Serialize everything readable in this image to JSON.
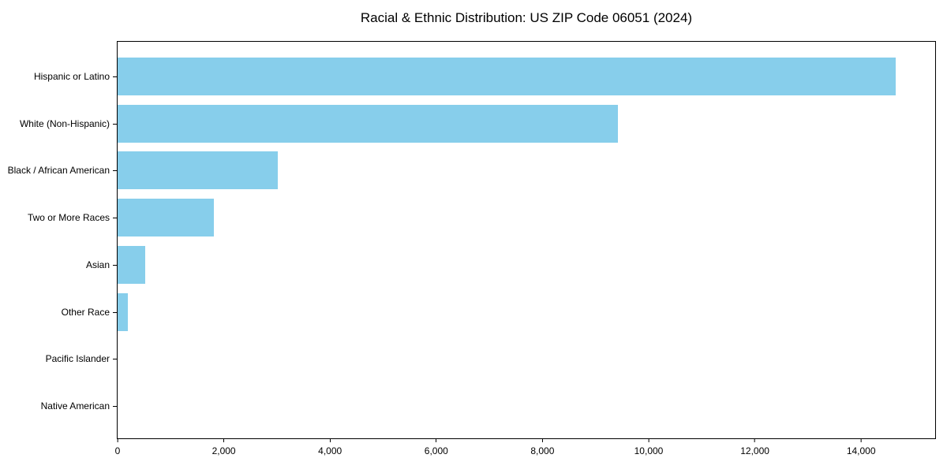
{
  "page": {
    "background_color": "#ffffff",
    "text_color": "#000000"
  },
  "chart_data": {
    "type": "bar",
    "orientation": "horizontal",
    "title": "Racial & Ethnic Distribution: US ZIP Code 06051 (2024)",
    "categories": [
      "Hispanic or Latino",
      "White (Non-Hispanic)",
      "Black / African American",
      "Two or More Races",
      "Asian",
      "Other Race",
      "Pacific Islander",
      "Native American"
    ],
    "values": [
      14650,
      9420,
      3010,
      1820,
      520,
      190,
      0,
      0
    ],
    "bar_color": "#87CEEB",
    "xlabel": "",
    "ylabel": "",
    "xlim": [
      0,
      15394
    ],
    "xticks": [
      0,
      2000,
      4000,
      6000,
      8000,
      10000,
      12000,
      14000
    ],
    "xtick_labels": [
      "0",
      "2,000",
      "4,000",
      "6,000",
      "8,000",
      "10,000",
      "12,000",
      "14,000"
    ],
    "grid": false,
    "legend": null,
    "bar_height_fraction": 0.8
  }
}
